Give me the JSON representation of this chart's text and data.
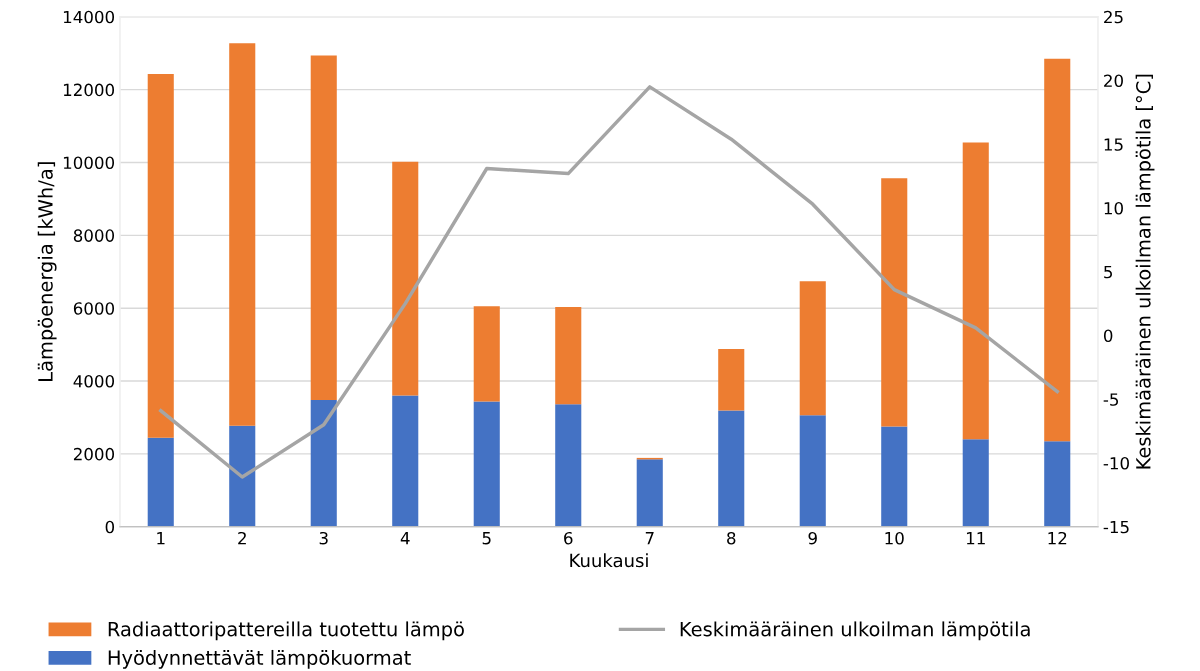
{
  "chart_data": {
    "type": "bar",
    "stacked": true,
    "xlabel": "Kuukausi",
    "ylabel": "Lämpöenergia [kWh/a]",
    "y2label": "Keskimääräinen ulkoilman lämpötila [°C]",
    "categories": [
      "1",
      "2",
      "3",
      "4",
      "5",
      "6",
      "7",
      "8",
      "9",
      "10",
      "11",
      "12"
    ],
    "series": [
      {
        "name": "Hyödynnettävät lämpökuormat",
        "color": "#4472c4",
        "values": [
          2440,
          2770,
          3480,
          3600,
          3440,
          3360,
          1850,
          3190,
          3060,
          2750,
          2400,
          2350
        ]
      },
      {
        "name": "Radiaattoripattereilla tuotettu lämpö",
        "color": "#ed7d31",
        "values": [
          9990,
          10500,
          9460,
          6420,
          2610,
          2670,
          40,
          1690,
          3680,
          6820,
          8150,
          10500
        ]
      },
      {
        "name": "Keskimääräinen ulkoilman lämpötila",
        "type": "line",
        "axis": "y2",
        "color": "#a5a5a5",
        "values": [
          -5.9,
          -11.1,
          -7.0,
          2.5,
          13.1,
          12.7,
          19.5,
          15.4,
          10.3,
          3.6,
          0.6,
          -4.4
        ]
      }
    ],
    "ylim": [
      0,
      14000
    ],
    "yticks": [
      0,
      2000,
      4000,
      6000,
      8000,
      10000,
      12000,
      14000
    ],
    "y2lim": [
      -15,
      25
    ],
    "y2ticks": [
      -15,
      -10,
      -5,
      0,
      5,
      10,
      15,
      20,
      25
    ],
    "grid": "y",
    "legend": "bottom",
    "marker": "none",
    "line_style": "solid"
  }
}
